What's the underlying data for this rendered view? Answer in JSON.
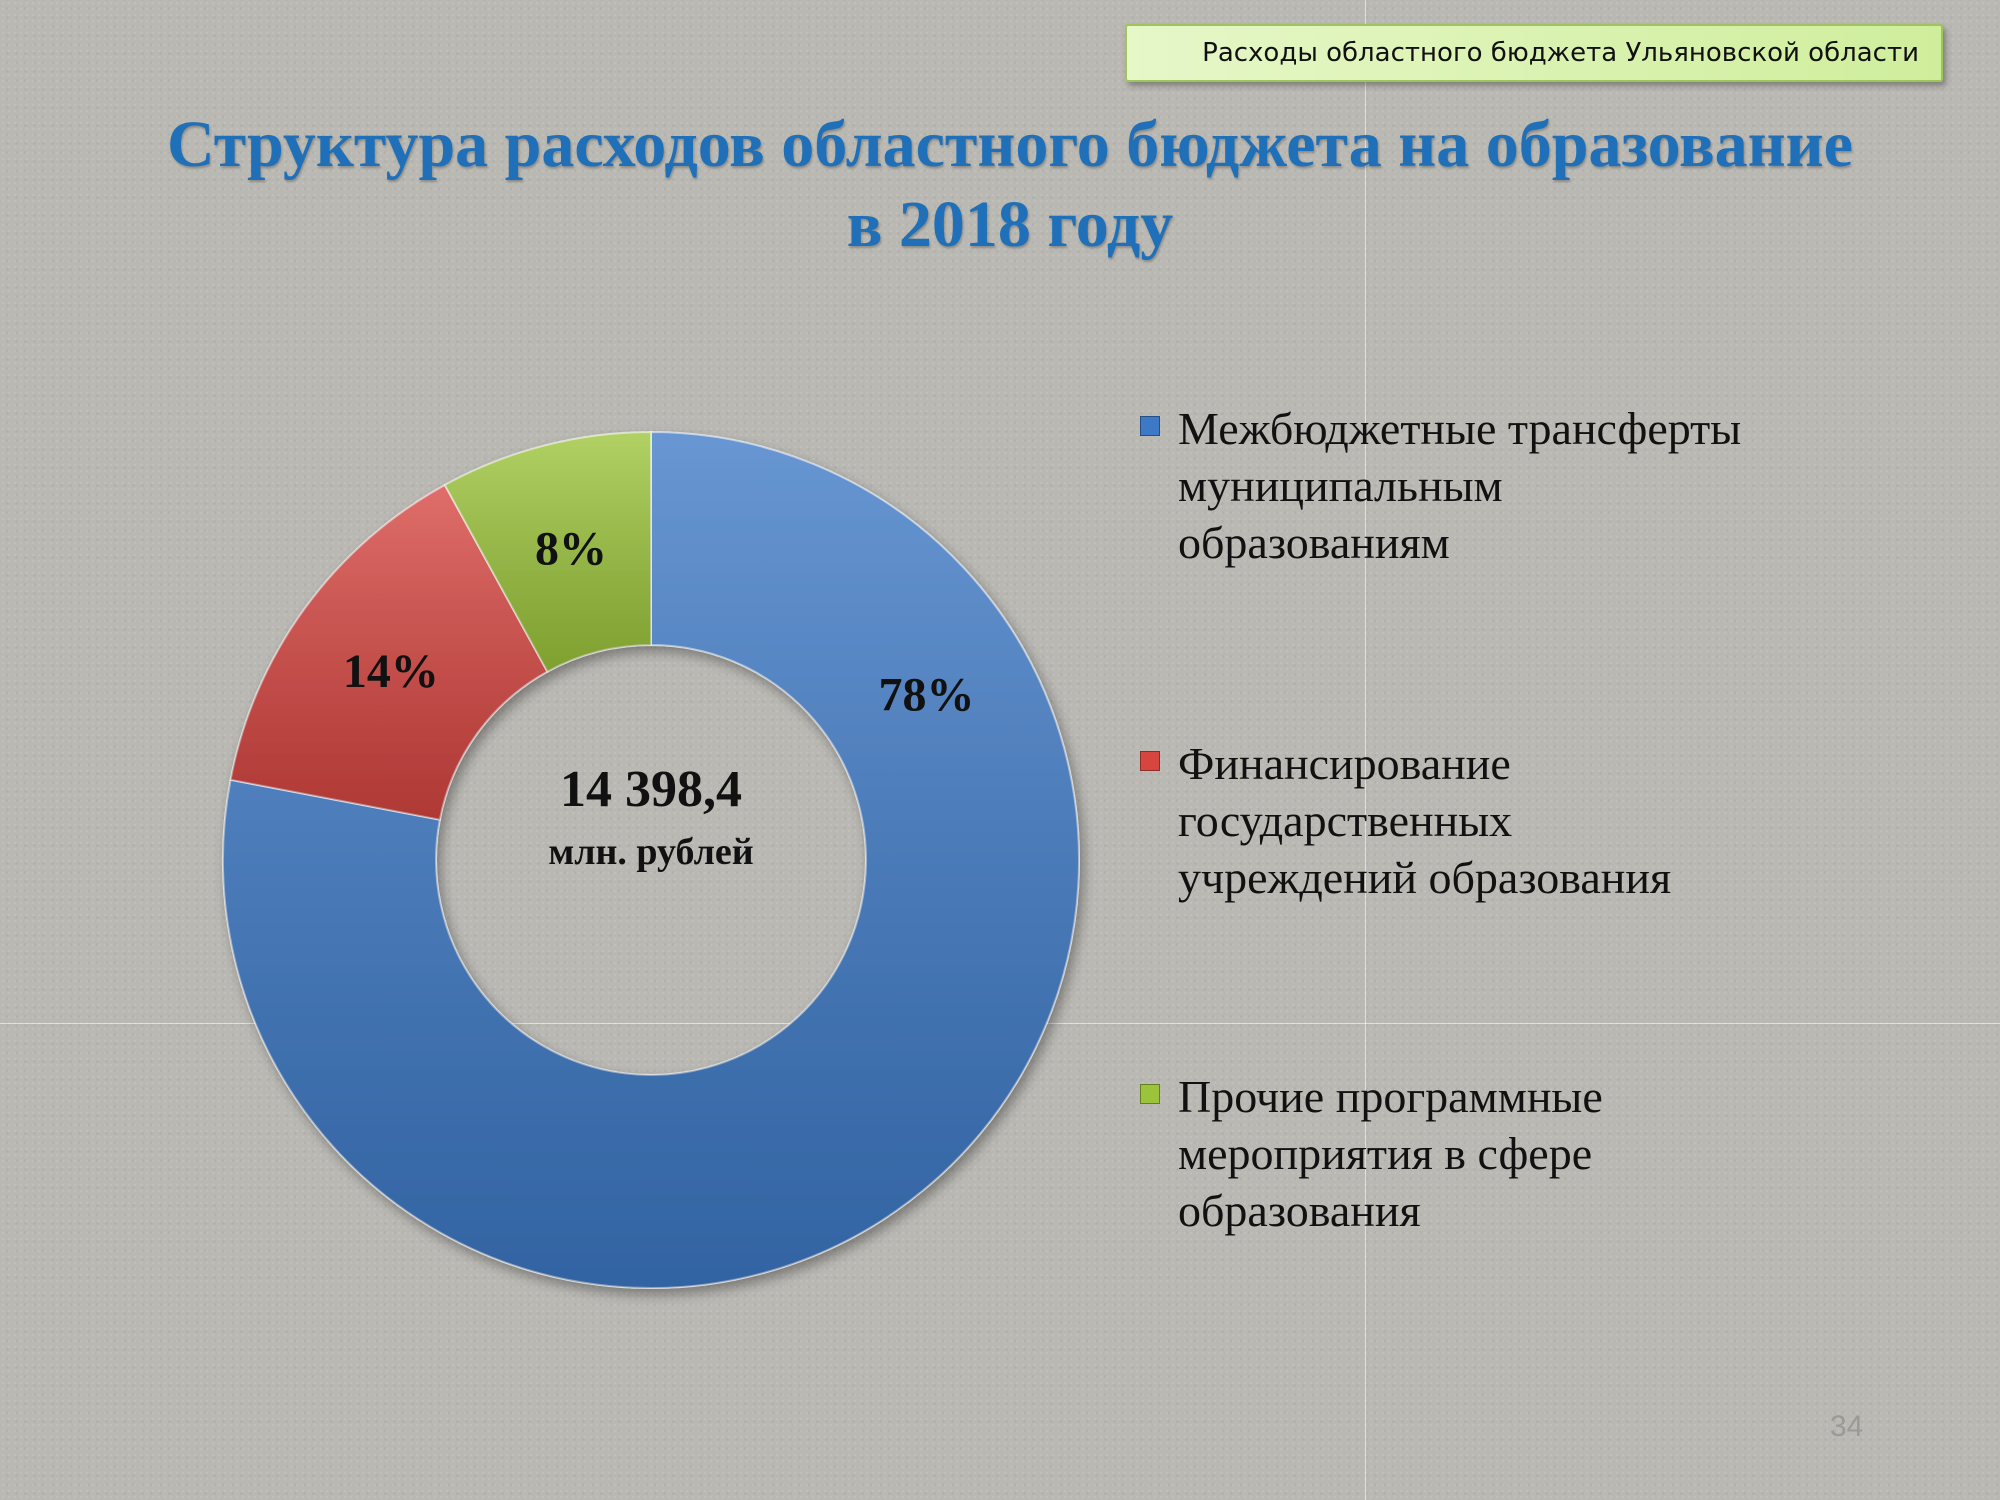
{
  "header_tag": "Расходы областного бюджета Ульяновской области",
  "title_lines": [
    "Структура расходов областного бюджета на образование",
    "в 2018 году"
  ],
  "center": {
    "value": "14 398,4",
    "unit": "млн. рублей"
  },
  "page_number": "34",
  "chart_data": {
    "type": "pie",
    "variant": "donut",
    "title": "Структура расходов областного бюджета на образование в 2018 году",
    "total_label": "14 398,4 млн. рублей",
    "legend_position": "right",
    "slices": [
      {
        "label": "Межбюджетные трансферты муниципальным образованиям",
        "value": 78,
        "display": "78%",
        "color": "#3d79c6"
      },
      {
        "label": "Финансирование государственных учреждений образования",
        "value": 14,
        "display": "14%",
        "color": "#d64540"
      },
      {
        "label": "Прочие программные мероприятия в сфере образования",
        "value": 8,
        "display": "8%",
        "color": "#9bc43a"
      }
    ],
    "legend": [
      {
        "lines": [
          "Межбюджетные трансферты",
          "муниципальным",
          "образованиям"
        ],
        "color": "#3d79c6"
      },
      {
        "lines": [
          "Финансирование",
          "государственных",
          "учреждений образования"
        ],
        "color": "#d64540"
      },
      {
        "lines": [
          "Прочие программные",
          "мероприятия в сфере",
          "образования"
        ],
        "color": "#9bc43a"
      }
    ]
  }
}
